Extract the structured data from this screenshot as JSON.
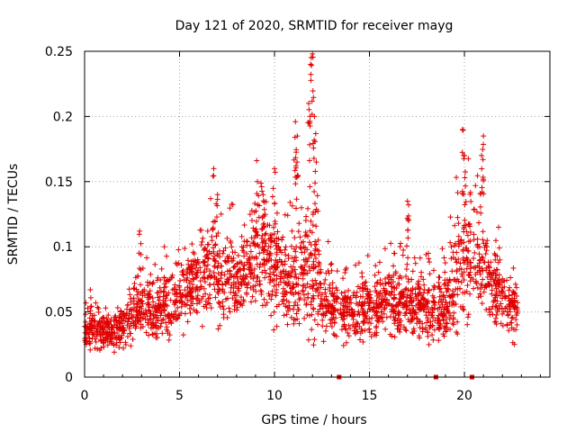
{
  "chart_data": {
    "type": "scatter",
    "title": "Day 121 of 2020, SRMTID for receiver mayg",
    "xlabel": "GPS time / hours",
    "ylabel": "SRMTID / TECUs",
    "xlim": [
      0,
      24.5
    ],
    "ylim": [
      0,
      0.25
    ],
    "xticks": [
      0,
      5,
      10,
      15,
      20
    ],
    "xtick_labels": [
      "0",
      "5",
      "10",
      "15",
      "20"
    ],
    "yticks": [
      0,
      0.05,
      0.1,
      0.15,
      0.2,
      0.25
    ],
    "ytick_labels": [
      "0",
      "0.05",
      "0.1",
      "0.15",
      "0.2",
      "0.25"
    ],
    "grid": true,
    "marker": "+",
    "color": "#e00000",
    "series": [
      {
        "name": "SRMTID",
        "envelope_x": [
          0,
          0.5,
          1,
          1.5,
          2,
          2.5,
          3,
          3.5,
          4,
          4.5,
          5,
          5.5,
          6,
          6.5,
          7,
          7.5,
          8,
          8.5,
          9,
          9.5,
          10,
          10.5,
          11,
          11.5,
          12,
          12.5,
          13,
          13.5,
          14,
          14.5,
          15,
          15.5,
          16,
          16.5,
          17,
          17.5,
          18,
          18.5,
          19,
          19.5,
          20,
          20.5,
          21,
          21.5,
          22,
          22.5,
          22.8
        ],
        "envelope_median": [
          0.035,
          0.038,
          0.036,
          0.035,
          0.04,
          0.05,
          0.055,
          0.05,
          0.05,
          0.052,
          0.06,
          0.07,
          0.075,
          0.08,
          0.08,
          0.075,
          0.075,
          0.08,
          0.09,
          0.095,
          0.085,
          0.075,
          0.08,
          0.085,
          0.09,
          0.06,
          0.055,
          0.05,
          0.05,
          0.05,
          0.055,
          0.055,
          0.06,
          0.055,
          0.055,
          0.055,
          0.05,
          0.05,
          0.055,
          0.075,
          0.085,
          0.09,
          0.085,
          0.07,
          0.06,
          0.055,
          0.05
        ],
        "envelope_spread": [
          0.01,
          0.012,
          0.012,
          0.012,
          0.015,
          0.02,
          0.02,
          0.02,
          0.02,
          0.02,
          0.022,
          0.025,
          0.028,
          0.03,
          0.03,
          0.028,
          0.028,
          0.03,
          0.035,
          0.035,
          0.035,
          0.03,
          0.035,
          0.04,
          0.05,
          0.025,
          0.02,
          0.02,
          0.02,
          0.02,
          0.02,
          0.02,
          0.022,
          0.022,
          0.022,
          0.022,
          0.022,
          0.022,
          0.025,
          0.035,
          0.04,
          0.04,
          0.035,
          0.025,
          0.02,
          0.018,
          0.015
        ],
        "peaks": [
          {
            "x": 0.3,
            "y": 0.067
          },
          {
            "x": 2.9,
            "y": 0.112
          },
          {
            "x": 4.2,
            "y": 0.1
          },
          {
            "x": 6.8,
            "y": 0.16
          },
          {
            "x": 7.0,
            "y": 0.14
          },
          {
            "x": 9.1,
            "y": 0.15
          },
          {
            "x": 9.4,
            "y": 0.14
          },
          {
            "x": 10.0,
            "y": 0.16
          },
          {
            "x": 11.1,
            "y": 0.196
          },
          {
            "x": 11.2,
            "y": 0.185
          },
          {
            "x": 11.8,
            "y": 0.21
          },
          {
            "x": 11.9,
            "y": 0.24
          },
          {
            "x": 12.0,
            "y": 0.248
          },
          {
            "x": 12.1,
            "y": 0.2
          },
          {
            "x": 12.2,
            "y": 0.165
          },
          {
            "x": 13.0,
            "y": 0.087
          },
          {
            "x": 14.6,
            "y": 0.08
          },
          {
            "x": 16.3,
            "y": 0.095
          },
          {
            "x": 17.0,
            "y": 0.135
          },
          {
            "x": 17.0,
            "y": 0.122
          },
          {
            "x": 18.1,
            "y": 0.095
          },
          {
            "x": 19.9,
            "y": 0.19
          },
          {
            "x": 20.0,
            "y": 0.17
          },
          {
            "x": 21.0,
            "y": 0.185
          },
          {
            "x": 20.9,
            "y": 0.17
          },
          {
            "x": 21.8,
            "y": 0.115
          },
          {
            "x": 22.6,
            "y": 0.065
          }
        ],
        "count": 2400
      }
    ],
    "gap_markers": [
      {
        "x": 13.4,
        "y": 0
      },
      {
        "x": 18.5,
        "y": 0
      },
      {
        "x": 20.4,
        "y": 0
      }
    ],
    "data_gaps_hours": [
      [
        13.35,
        13.45
      ],
      [
        18.45,
        18.55
      ],
      [
        20.35,
        20.45
      ]
    ]
  }
}
